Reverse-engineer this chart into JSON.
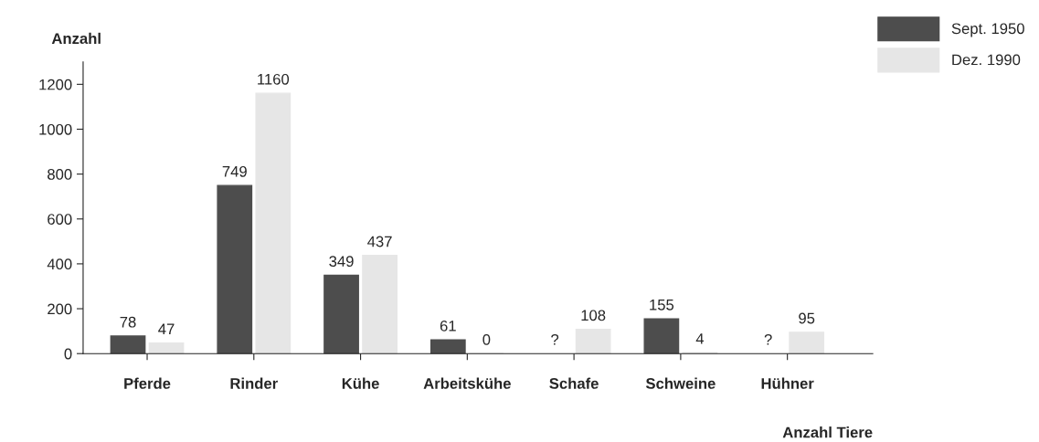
{
  "chart_data": {
    "type": "bar",
    "ylabel": "Anzahl",
    "xlabel": "Anzahl Tiere",
    "categories": [
      "Pferde",
      "Rinder",
      "Kühe",
      "Arbeitskühe",
      "Schafe",
      "Schweine",
      "Hühner"
    ],
    "series": [
      {
        "name": "Sept. 1950",
        "color": "#4d4d4d",
        "values": [
          78,
          749,
          349,
          61,
          null,
          155,
          null
        ],
        "value_labels": [
          "78",
          "749",
          "349",
          "61",
          "?",
          "155",
          "?"
        ]
      },
      {
        "name": "Dez. 1990",
        "color": "#e6e6e6",
        "values": [
          47,
          1160,
          437,
          0,
          108,
          4,
          95
        ],
        "value_labels": [
          "47",
          "1160",
          "437",
          "0",
          "108",
          "4",
          "95"
        ]
      }
    ],
    "ylim": [
      0,
      1300
    ],
    "yticks": [
      0,
      200,
      400,
      600,
      800,
      1000,
      1200
    ],
    "grid": false,
    "legend": "top right"
  }
}
